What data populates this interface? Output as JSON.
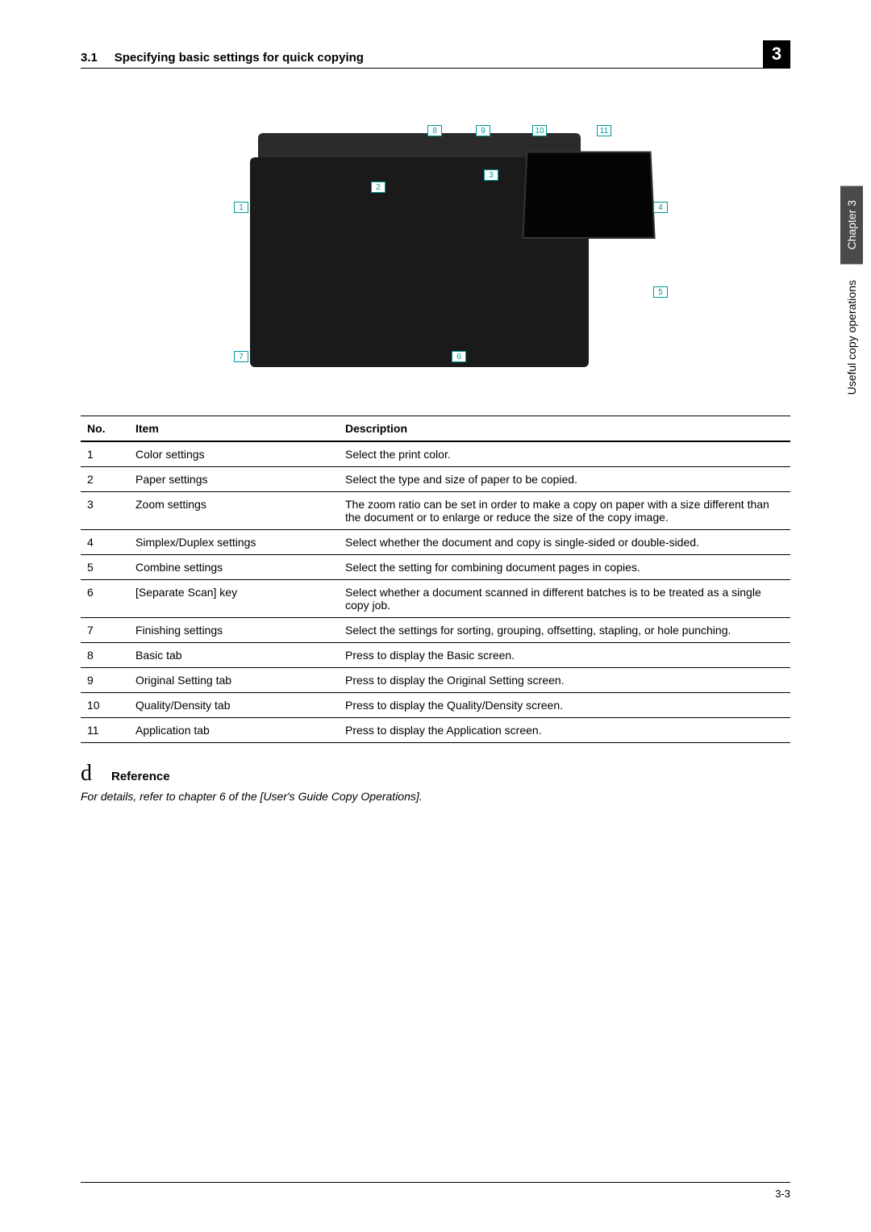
{
  "header": {
    "section_no": "3.1",
    "section_title": "Specifying basic settings for quick copying",
    "chapter_num": "3"
  },
  "side": {
    "chapter_label": "Chapter 3",
    "side_text": "Useful copy operations"
  },
  "callouts": {
    "n1": "1",
    "n2": "2",
    "n3": "3",
    "n4": "4",
    "n5": "5",
    "n6": "6",
    "n7": "7",
    "n8": "8",
    "n9": "9",
    "n10": "10",
    "n11": "11"
  },
  "table": {
    "headers": {
      "no": "No.",
      "item": "Item",
      "desc": "Description"
    },
    "rows": [
      {
        "no": "1",
        "item": "Color settings",
        "desc": "Select the print color."
      },
      {
        "no": "2",
        "item": "Paper settings",
        "desc": "Select the type and size of paper to be copied."
      },
      {
        "no": "3",
        "item": "Zoom settings",
        "desc": "The zoom ratio can be set in order to make a copy on paper with a size different than the document or to enlarge or reduce the size of the copy image."
      },
      {
        "no": "4",
        "item": "Simplex/Duplex settings",
        "desc": "Select whether the document and copy is single-sided or double-sided."
      },
      {
        "no": "5",
        "item": "Combine settings",
        "desc": "Select the setting for combining document pages in copies."
      },
      {
        "no": "6",
        "item": "[Separate Scan] key",
        "desc": "Select whether a document scanned in different batches is to be treated as a single copy job."
      },
      {
        "no": "7",
        "item": "Finishing settings",
        "desc": "Select the settings for sorting, grouping, offsetting, stapling, or hole punching."
      },
      {
        "no": "8",
        "item": "Basic tab",
        "desc": "Press to display the Basic screen."
      },
      {
        "no": "9",
        "item": "Original Setting tab",
        "desc": "Press to display the Original Setting screen."
      },
      {
        "no": "10",
        "item": "Quality/Density tab",
        "desc": "Press to display the Quality/Density screen."
      },
      {
        "no": "11",
        "item": "Application tab",
        "desc": "Press to display the Application screen."
      }
    ]
  },
  "reference": {
    "glyph": "d",
    "label": "Reference",
    "text": "For details, refer to chapter 6 of the [User's Guide Copy Operations]."
  },
  "footer": {
    "page": "3-3"
  },
  "colors": {
    "callout_border": "#009999",
    "text": "#000000",
    "chapter_bg": "#4a4a4a"
  }
}
